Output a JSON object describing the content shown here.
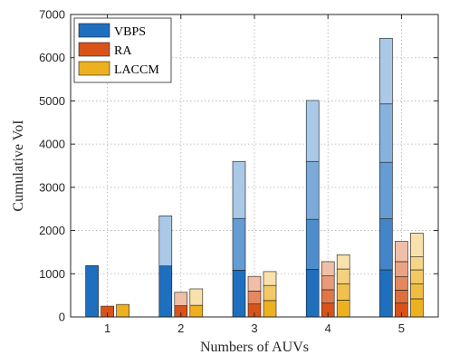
{
  "chart_data": {
    "type": "bar",
    "stacked": true,
    "title": "",
    "xlabel": "Numbers of AUVs",
    "ylabel": "Cumulative VoI",
    "categories": [
      "1",
      "2",
      "3",
      "4",
      "5"
    ],
    "ylim": [
      0,
      7000
    ],
    "yticks": [
      0,
      1000,
      2000,
      3000,
      4000,
      5000,
      6000,
      7000
    ],
    "grid": true,
    "legend": {
      "placement": "top-left"
    },
    "series": [
      {
        "name": "VBPS",
        "color": "#1f6fbf",
        "stacks": [
          [
            1190
          ],
          [
            1180,
            1160
          ],
          [
            1080,
            1200,
            1320
          ],
          [
            1100,
            1160,
            1340,
            1410
          ],
          [
            1090,
            1180,
            1310,
            1350,
            1520
          ]
        ],
        "totals": [
          1190,
          2340,
          3600,
          5010,
          6450
        ]
      },
      {
        "name": "RA",
        "color": "#d95319",
        "stacks": [
          [
            250
          ],
          [
            260,
            310
          ],
          [
            300,
            300,
            340
          ],
          [
            320,
            310,
            320,
            330
          ],
          [
            320,
            300,
            310,
            350,
            470
          ]
        ],
        "totals": [
          250,
          570,
          940,
          1280,
          1750
        ]
      },
      {
        "name": "LACCM",
        "color": "#edb120",
        "stacks": [
          [
            290
          ],
          [
            270,
            380
          ],
          [
            380,
            350,
            320
          ],
          [
            390,
            380,
            340,
            330
          ],
          [
            420,
            350,
            320,
            300,
            550
          ]
        ],
        "totals": [
          290,
          650,
          1050,
          1440,
          1940
        ]
      }
    ]
  }
}
